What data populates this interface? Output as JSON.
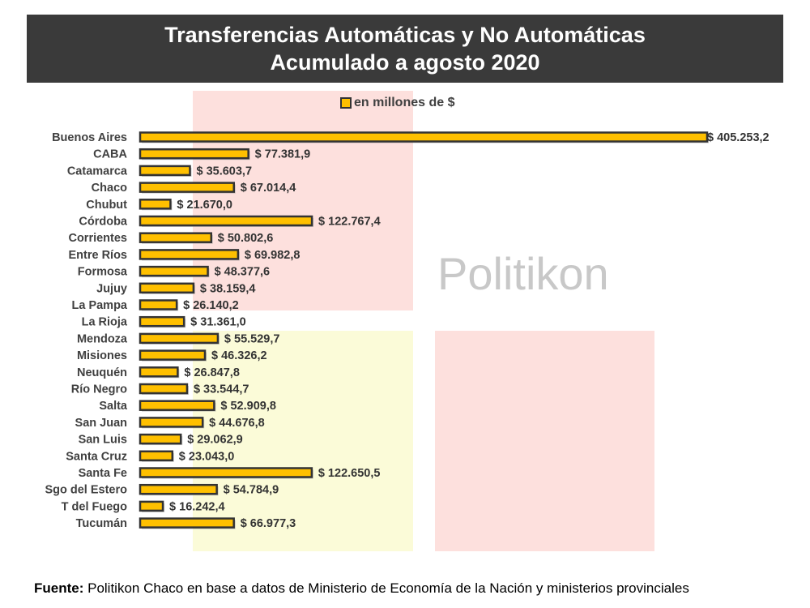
{
  "chart_data": {
    "type": "bar",
    "title": "Transferencias Automáticas y No Automáticas",
    "subtitle": "Acumulado a agosto 2020",
    "legend": "en millones de $",
    "legend_position": "top",
    "categories": [
      "Buenos Aires",
      "CABA",
      "Catamarca",
      "Chaco",
      "Chubut",
      "Córdoba",
      "Corrientes",
      "Entre Ríos",
      "Formosa",
      "Jujuy",
      "La Pampa",
      "La Rioja",
      "Mendoza",
      "Misiones",
      "Neuquén",
      "Río Negro",
      "Salta",
      "San Juan",
      "San Luis",
      "Santa Cruz",
      "Santa Fe",
      "Sgo del Estero",
      "T del Fuego",
      "Tucumán"
    ],
    "values": [
      405253.2,
      77381.9,
      35603.7,
      67014.4,
      21670.0,
      122767.4,
      50802.6,
      69982.8,
      48377.6,
      38159.4,
      26140.2,
      31361.0,
      55529.7,
      46326.2,
      26847.8,
      33544.7,
      52909.8,
      44676.8,
      29062.9,
      23043.0,
      122650.5,
      54784.9,
      16242.4,
      66977.3
    ],
    "labels": [
      "$ 405.253,2",
      "$ 77.381,9",
      "$ 35.603,7",
      "$ 67.014,4",
      "$ 21.670,0",
      "$ 122.767,4",
      "$ 50.802,6",
      "$ 69.982,8",
      "$ 48.377,6",
      "$ 38.159,4",
      "$ 26.140,2",
      "$ 31.361,0",
      "$ 55.529,7",
      "$ 46.326,2",
      "$ 26.847,8",
      "$ 33.544,7",
      "$ 52.909,8",
      "$ 44.676,8",
      "$ 29.062,9",
      "$ 23.043,0",
      "$ 122.650,5",
      "$ 54.784,9",
      "$ 16.242,4",
      "$ 66.977,3"
    ],
    "xlim": [
      0,
      405253.2
    ],
    "grid": false,
    "colors": {
      "bar": "#ffc000",
      "border": "#333333"
    }
  },
  "watermark": "Politikon",
  "source": {
    "bold": "Fuente:",
    "text": " Politikon Chaco en base a datos de Ministerio de Economía de la Nación y ministerios provinciales"
  }
}
